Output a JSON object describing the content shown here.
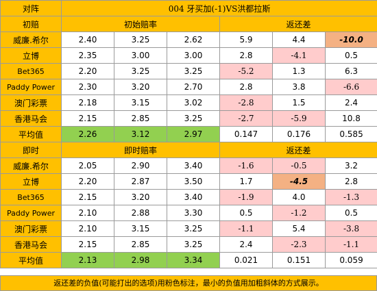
{
  "title": "004 牙买加(-1)VS洪都拉斯",
  "corner_label": "对阵",
  "sections": [
    {
      "label": "初赔",
      "odds_header": "初始赔率",
      "diff_header": "返还差",
      "rows": [
        {
          "company": "威廉.希尔",
          "odds": [
            "2.40",
            "3.25",
            "2.62"
          ],
          "diff": [
            "5.9",
            "4.4",
            "-10.0"
          ],
          "style": [
            "",
            "",
            "min"
          ]
        },
        {
          "company": "立博",
          "odds": [
            "2.35",
            "3.00",
            "3.00"
          ],
          "diff": [
            "2.8",
            "-4.1",
            "0.5"
          ],
          "style": [
            "",
            "neg",
            ""
          ]
        },
        {
          "company": "Bet365",
          "odds": [
            "2.20",
            "3.25",
            "3.25"
          ],
          "diff": [
            "-5.2",
            "1.3",
            "6.3"
          ],
          "style": [
            "neg",
            "",
            ""
          ]
        },
        {
          "company": "Paddy Power",
          "odds": [
            "2.30",
            "3.20",
            "2.70"
          ],
          "diff": [
            "2.8",
            "3.8",
            "-6.6"
          ],
          "style": [
            "",
            "",
            "neg"
          ]
        },
        {
          "company": "澳门彩票",
          "odds": [
            "2.18",
            "3.15",
            "3.02"
          ],
          "diff": [
            "-2.8",
            "1.5",
            "2.4"
          ],
          "style": [
            "neg",
            "",
            ""
          ]
        },
        {
          "company": "香港马会",
          "odds": [
            "2.15",
            "2.85",
            "3.25"
          ],
          "diff": [
            "-2.7",
            "-5.9",
            "10.8"
          ],
          "style": [
            "neg",
            "neg",
            ""
          ]
        }
      ],
      "average": {
        "label": "平均值",
        "odds": [
          "2.26",
          "3.12",
          "2.97"
        ],
        "diff": [
          "0.147",
          "0.176",
          "0.585"
        ]
      }
    },
    {
      "label": "即时",
      "odds_header": "即时赔率",
      "diff_header": "返还差",
      "rows": [
        {
          "company": "威廉.希尔",
          "odds": [
            "2.05",
            "2.90",
            "3.40"
          ],
          "diff": [
            "-1.6",
            "-0.5",
            "3.2"
          ],
          "style": [
            "neg",
            "neg",
            ""
          ]
        },
        {
          "company": "立博",
          "odds": [
            "2.20",
            "2.87",
            "3.50"
          ],
          "diff": [
            "1.7",
            "-4.5",
            "2.8"
          ],
          "style": [
            "",
            "min",
            ""
          ]
        },
        {
          "company": "Bet365",
          "odds": [
            "2.15",
            "3.20",
            "3.40"
          ],
          "diff": [
            "-1.9",
            "4.0",
            "-1.3"
          ],
          "style": [
            "neg",
            "",
            "neg"
          ]
        },
        {
          "company": "Paddy Power",
          "odds": [
            "2.10",
            "2.88",
            "3.30"
          ],
          "diff": [
            "0.5",
            "-1.2",
            "0.5"
          ],
          "style": [
            "",
            "neg",
            ""
          ]
        },
        {
          "company": "澳门彩票",
          "odds": [
            "2.10",
            "3.15",
            "3.25"
          ],
          "diff": [
            "-1.1",
            "5.4",
            "-3.8"
          ],
          "style": [
            "neg",
            "",
            "neg"
          ]
        },
        {
          "company": "香港马会",
          "odds": [
            "2.15",
            "2.85",
            "3.25"
          ],
          "diff": [
            "2.4",
            "-2.3",
            "-1.1"
          ],
          "style": [
            "",
            "neg",
            "neg"
          ]
        }
      ],
      "average": {
        "label": "平均值",
        "odds": [
          "2.13",
          "2.98",
          "3.34"
        ],
        "diff": [
          "0.021",
          "0.151",
          "0.059"
        ]
      }
    }
  ],
  "footnote": "返还差的负值(可能打出的选项)用粉色标注，最小的负值用加粗斜体的方式展示。",
  "colors": {
    "header": "#ffc000",
    "average": "#92d050",
    "negative": "#ffcccc",
    "minimum": "#f4b183",
    "negative_text": "#c00000"
  }
}
